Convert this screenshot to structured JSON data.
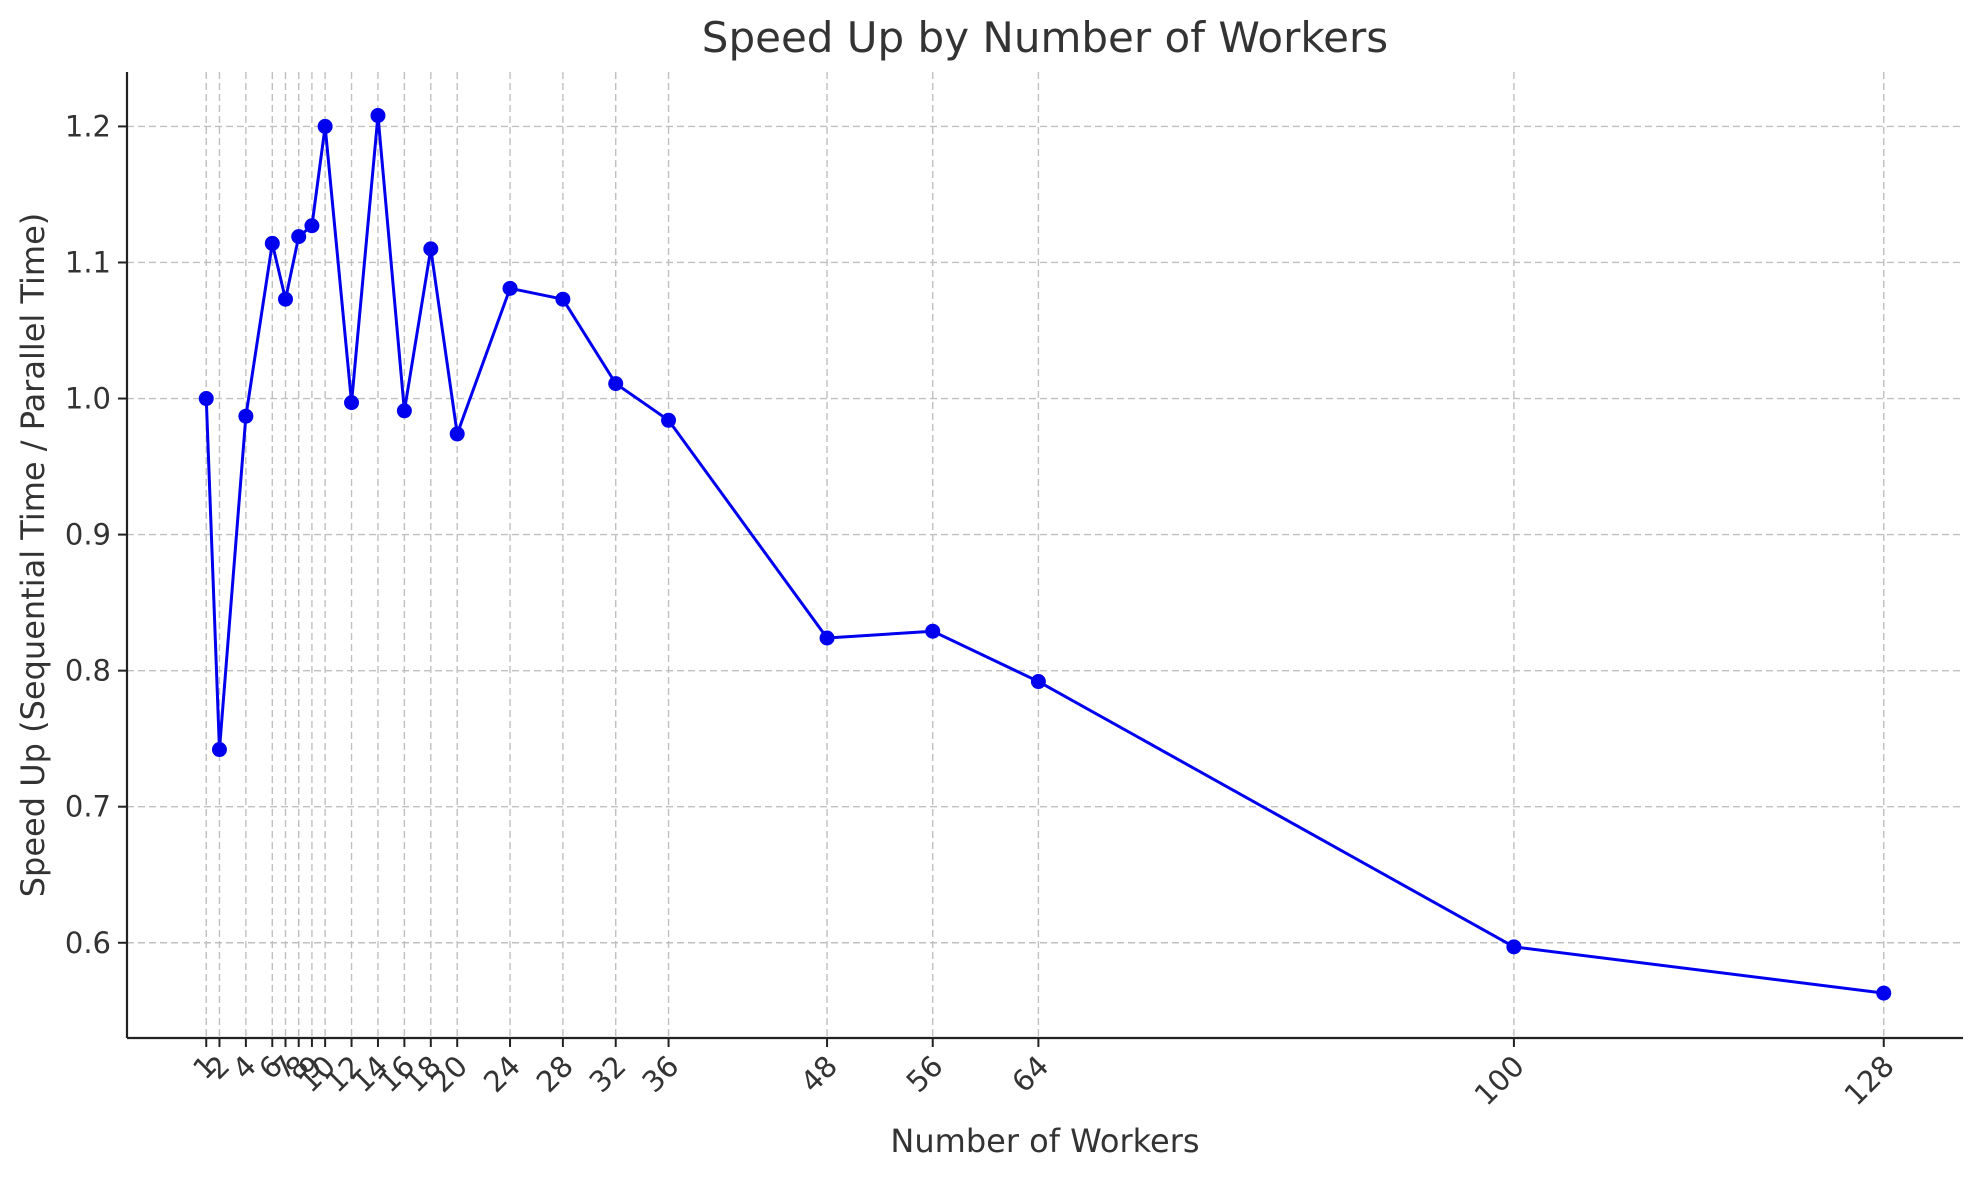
{
  "chart_data": {
    "type": "line",
    "title": "Speed Up by Number of Workers",
    "xlabel": "Number of Workers",
    "ylabel": "Speed Up (Sequential Time / Parallel Time)",
    "xlim": [
      -5,
      134
    ],
    "ylim": [
      0.53,
      1.24
    ],
    "grid": true,
    "x_ticks": [
      1,
      2,
      4,
      6,
      7,
      8,
      9,
      10,
      12,
      14,
      16,
      18,
      20,
      24,
      28,
      32,
      36,
      48,
      56,
      64,
      100,
      128
    ],
    "y_ticks": [
      "0.6",
      "0.7",
      "0.8",
      "0.9",
      "1.0",
      "1.1",
      "1.2"
    ],
    "series": [
      {
        "color": "#0000ee",
        "x": [
          1,
          2,
          4,
          6,
          7,
          8,
          9,
          10,
          12,
          14,
          16,
          18,
          20,
          24,
          28,
          32,
          36,
          48,
          56,
          64,
          100,
          128
        ],
        "y": [
          1.0,
          0.742,
          0.987,
          1.114,
          1.073,
          1.119,
          1.127,
          1.2,
          0.997,
          1.208,
          0.991,
          1.11,
          0.974,
          1.081,
          1.073,
          1.011,
          0.984,
          0.824,
          0.829,
          0.792,
          0.597,
          0.563
        ]
      }
    ]
  }
}
